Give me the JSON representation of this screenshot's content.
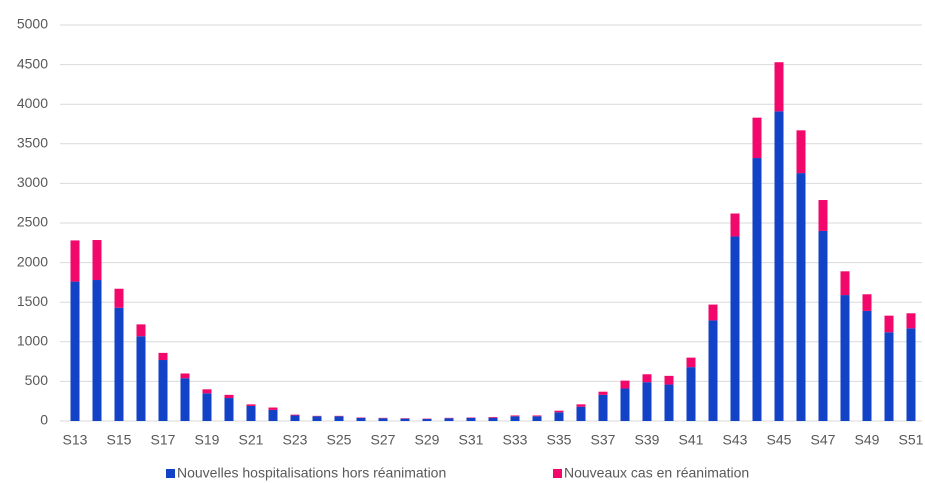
{
  "chart_data": {
    "type": "stacked_bar",
    "categories": [
      "S13",
      null,
      "S15",
      null,
      "S17",
      null,
      "S19",
      null,
      "S21",
      null,
      "S23",
      null,
      "S25",
      null,
      "S27",
      null,
      "S29",
      null,
      "S31",
      null,
      "S33",
      null,
      "S35",
      null,
      "S37",
      null,
      "S39",
      null,
      "S41",
      null,
      "S43",
      null,
      "S45",
      null,
      "S47",
      null,
      "S49",
      null,
      "S51"
    ],
    "series": [
      {
        "name": "Nouvelles hospitalisations hors réanimation",
        "color": "#1242c6",
        "values": [
          1760,
          1780,
          1430,
          1070,
          770,
          540,
          350,
          290,
          190,
          140,
          70,
          60,
          60,
          40,
          35,
          30,
          25,
          35,
          40,
          40,
          60,
          60,
          110,
          180,
          330,
          410,
          490,
          460,
          680,
          1270,
          2330,
          3320,
          3910,
          3130,
          2400,
          1590,
          1390,
          1120,
          1170
        ]
      },
      {
        "name": "Nouveaux cas en réanimation",
        "color": "#f2076b",
        "values": [
          520,
          505,
          240,
          150,
          90,
          60,
          50,
          40,
          20,
          30,
          10,
          5,
          5,
          5,
          5,
          5,
          5,
          5,
          5,
          10,
          10,
          10,
          20,
          30,
          40,
          100,
          100,
          110,
          120,
          200,
          290,
          510,
          620,
          540,
          390,
          300,
          210,
          210,
          190
        ]
      }
    ],
    "ylim": [
      0,
      5000
    ],
    "yticks": [
      0,
      500,
      1000,
      1500,
      2000,
      2500,
      3000,
      3500,
      4000,
      4500,
      5000
    ],
    "grid": true,
    "legend": "bottom"
  }
}
